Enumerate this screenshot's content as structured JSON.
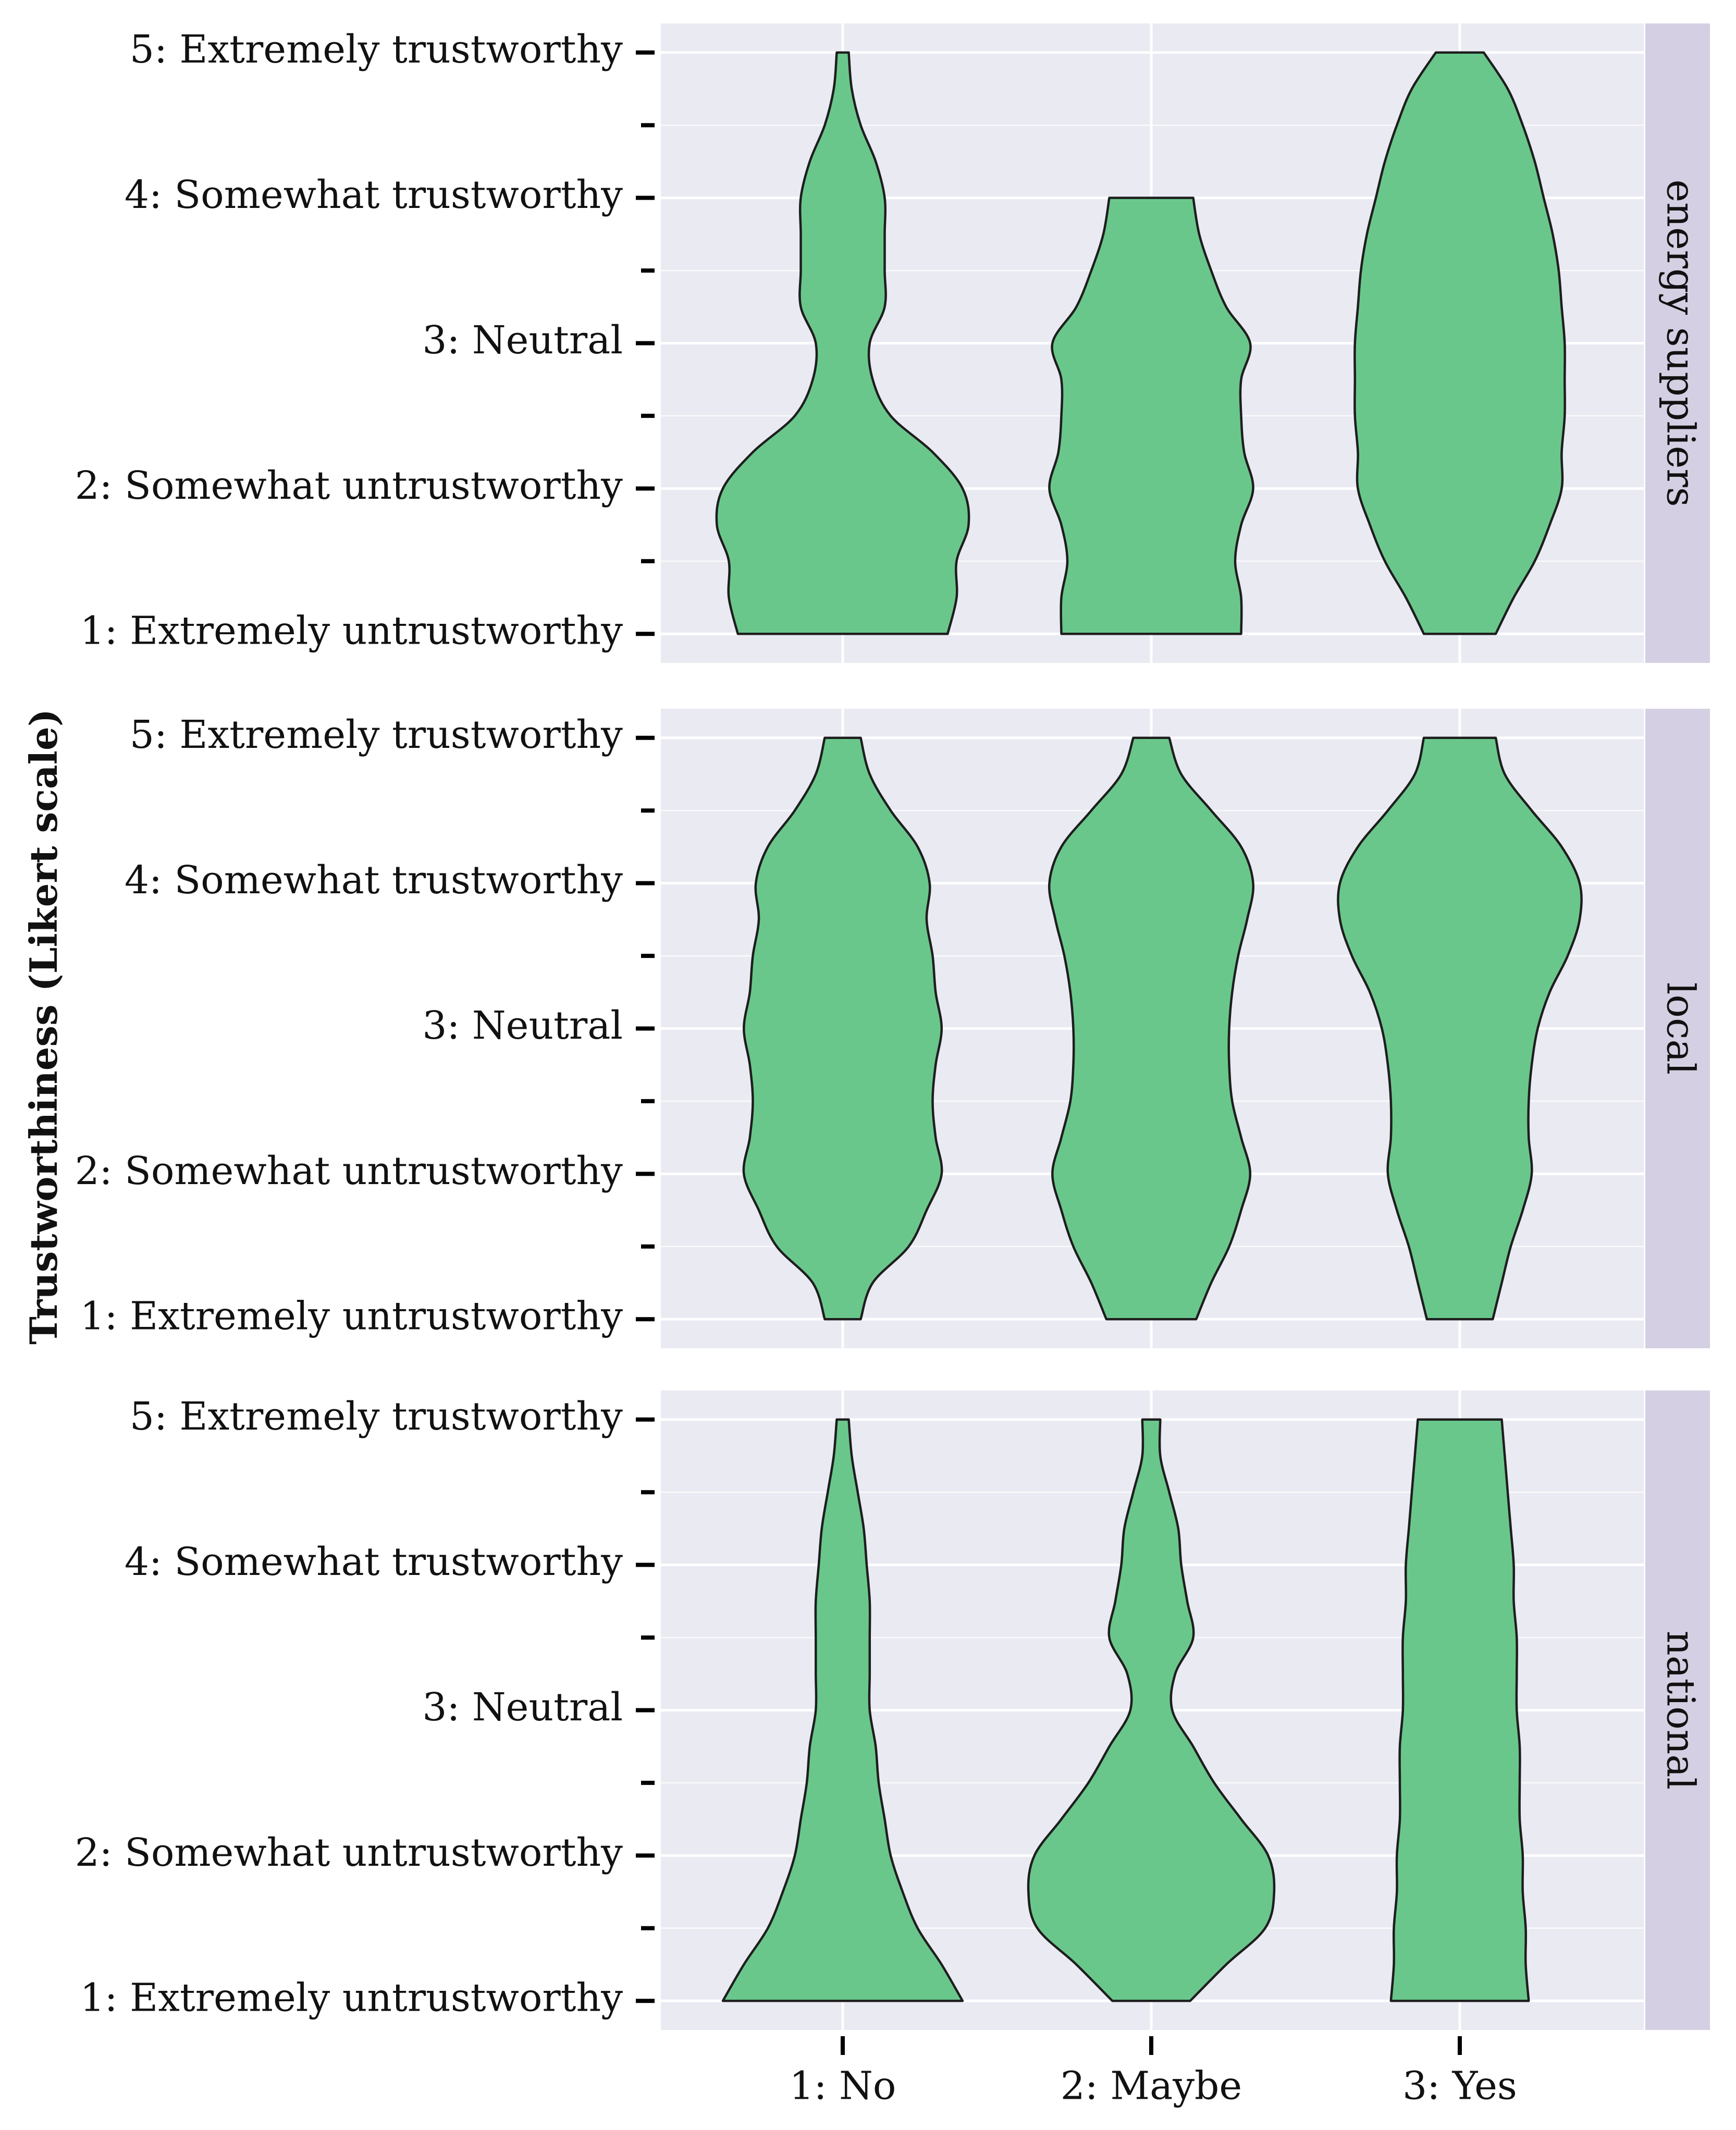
{
  "chart_data": {
    "type": "violin",
    "title": "",
    "xlabel": "",
    "ylabel": "Trustworthiness (Likert scale)",
    "categories": [
      "1: No",
      "2: Maybe",
      "3: Yes"
    ],
    "y_tick_values": [
      1,
      2,
      3,
      4,
      5
    ],
    "y_tick_labels": [
      "1: Extremely untrustworthy",
      "2: Somewhat untrustworthy",
      "3: Neutral",
      "4: Somewhat trustworthy",
      "5: Extremely trustworthy"
    ],
    "ylim": [
      0.8,
      5.2
    ],
    "fill_color": "#6ac78c",
    "panel_color": "#e9eaf2",
    "strip_color": "#d4cfe2",
    "panels": [
      {
        "name": "energy suppliers",
        "violins": [
          {
            "category": "1: No",
            "y": [
              1,
              1.25,
              1.5,
              1.75,
              2,
              2.25,
              2.5,
              2.75,
              3,
              3.25,
              3.5,
              3.75,
              4,
              4.25,
              4.5,
              4.75,
              5
            ],
            "w": [
              0.35,
              0.38,
              0.38,
              0.42,
              0.4,
              0.3,
              0.16,
              0.1,
              0.09,
              0.14,
              0.14,
              0.14,
              0.14,
              0.11,
              0.06,
              0.03,
              0.02
            ]
          },
          {
            "category": "2: Maybe",
            "y": [
              1,
              1.25,
              1.5,
              1.75,
              2,
              2.25,
              2.5,
              2.75,
              3,
              3.25,
              3.5,
              3.75,
              4
            ],
            "w": [
              0.3,
              0.3,
              0.28,
              0.3,
              0.34,
              0.31,
              0.3,
              0.3,
              0.33,
              0.25,
              0.2,
              0.16,
              0.14
            ]
          },
          {
            "category": "3: Yes",
            "y": [
              1,
              1.25,
              1.5,
              1.75,
              2,
              2.25,
              2.5,
              2.75,
              3,
              3.25,
              3.5,
              3.75,
              4,
              4.25,
              4.5,
              4.75,
              5
            ],
            "w": [
              0.12,
              0.18,
              0.25,
              0.3,
              0.34,
              0.34,
              0.35,
              0.35,
              0.35,
              0.34,
              0.33,
              0.31,
              0.28,
              0.25,
              0.21,
              0.16,
              0.08
            ]
          }
        ]
      },
      {
        "name": "local",
        "violins": [
          {
            "category": "1: No",
            "y": [
              1,
              1.25,
              1.5,
              1.75,
              2,
              2.25,
              2.5,
              2.75,
              3,
              3.25,
              3.5,
              3.75,
              4,
              4.25,
              4.5,
              4.75,
              5
            ],
            "w": [
              0.06,
              0.1,
              0.22,
              0.28,
              0.33,
              0.31,
              0.3,
              0.31,
              0.33,
              0.31,
              0.3,
              0.28,
              0.29,
              0.25,
              0.16,
              0.09,
              0.06
            ]
          },
          {
            "category": "2: Maybe",
            "y": [
              1,
              1.25,
              1.5,
              1.75,
              2,
              2.25,
              2.5,
              2.75,
              3,
              3.25,
              3.5,
              3.75,
              4,
              4.25,
              4.5,
              4.75,
              5
            ],
            "w": [
              0.15,
              0.2,
              0.26,
              0.3,
              0.33,
              0.3,
              0.27,
              0.26,
              0.26,
              0.27,
              0.29,
              0.32,
              0.34,
              0.3,
              0.2,
              0.1,
              0.06
            ]
          },
          {
            "category": "3: Yes",
            "y": [
              1,
              1.25,
              1.5,
              1.75,
              2,
              2.25,
              2.5,
              2.75,
              3,
              3.25,
              3.5,
              3.75,
              4,
              4.25,
              4.5,
              4.75,
              5
            ],
            "w": [
              0.11,
              0.14,
              0.17,
              0.21,
              0.24,
              0.23,
              0.23,
              0.24,
              0.26,
              0.3,
              0.36,
              0.4,
              0.4,
              0.34,
              0.24,
              0.15,
              0.12
            ]
          }
        ]
      },
      {
        "name": "national",
        "violins": [
          {
            "category": "1: No",
            "y": [
              1,
              1.25,
              1.5,
              1.75,
              2,
              2.25,
              2.5,
              2.75,
              3,
              3.25,
              3.5,
              3.75,
              4,
              4.25,
              4.5,
              4.75,
              5
            ],
            "w": [
              0.4,
              0.33,
              0.25,
              0.2,
              0.16,
              0.14,
              0.12,
              0.11,
              0.09,
              0.09,
              0.09,
              0.09,
              0.08,
              0.07,
              0.05,
              0.03,
              0.02
            ]
          },
          {
            "category": "2: Maybe",
            "y": [
              1,
              1.25,
              1.5,
              1.75,
              2,
              2.25,
              2.5,
              2.75,
              3,
              3.25,
              3.5,
              3.75,
              4,
              4.25,
              4.5,
              4.75,
              5
            ],
            "w": [
              0.13,
              0.25,
              0.38,
              0.41,
              0.39,
              0.3,
              0.21,
              0.14,
              0.07,
              0.08,
              0.14,
              0.12,
              0.1,
              0.09,
              0.06,
              0.03,
              0.03
            ]
          },
          {
            "category": "3: Yes",
            "y": [
              1,
              1.25,
              1.5,
              1.75,
              2,
              2.25,
              2.5,
              2.75,
              3,
              3.25,
              3.5,
              3.75,
              4,
              4.25,
              4.5,
              4.75,
              5
            ],
            "w": [
              0.23,
              0.22,
              0.22,
              0.21,
              0.21,
              0.2,
              0.2,
              0.2,
              0.19,
              0.19,
              0.19,
              0.18,
              0.18,
              0.17,
              0.16,
              0.15,
              0.14
            ]
          }
        ]
      }
    ]
  }
}
